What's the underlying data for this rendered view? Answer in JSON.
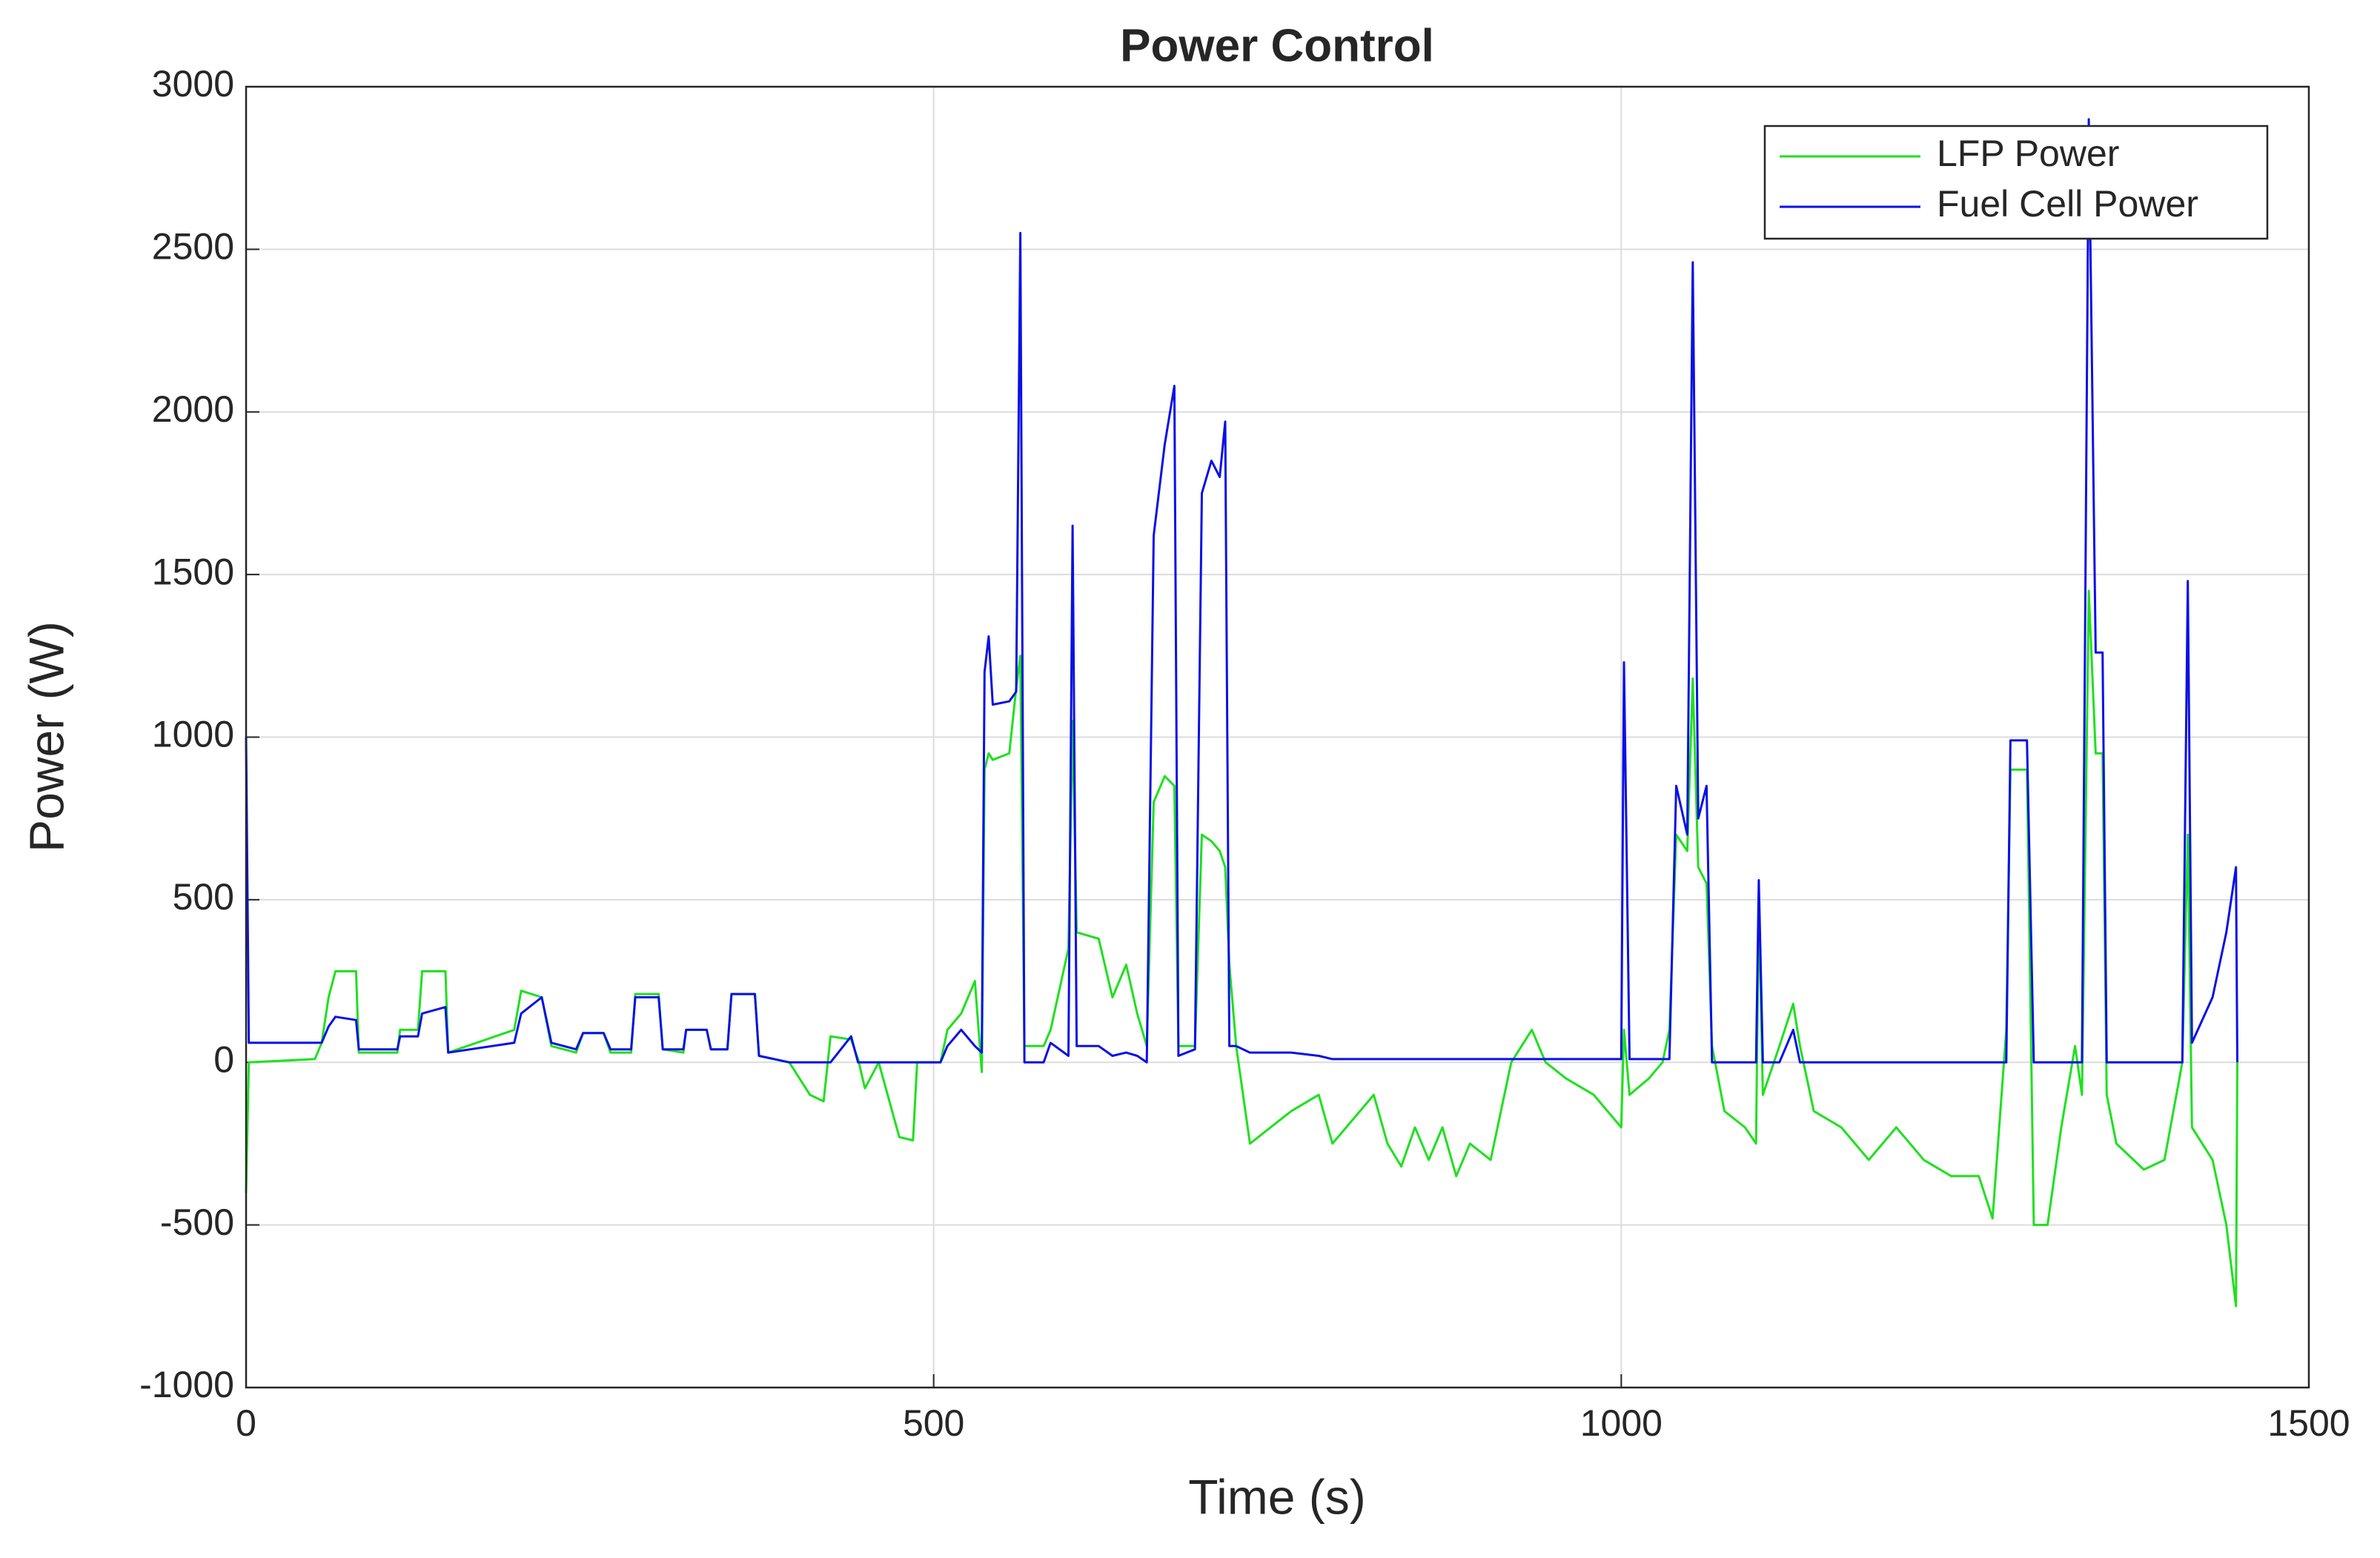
{
  "chart_data": {
    "type": "line",
    "title": "Power Control",
    "x_label": "Time (s)",
    "y_label": "Power (W)",
    "x": [
      0,
      2,
      50,
      55,
      60,
      65,
      80,
      82,
      110,
      112,
      125,
      128,
      145,
      147,
      195,
      200,
      215,
      222,
      240,
      245,
      260,
      265,
      280,
      283,
      300,
      303,
      318,
      320,
      335,
      338,
      350,
      353,
      370,
      373,
      395,
      410,
      420,
      425,
      440,
      445,
      450,
      460,
      475,
      485,
      488,
      505,
      510,
      520,
      530,
      535,
      537,
      540,
      543,
      555,
      560,
      563,
      566,
      580,
      585,
      598,
      601,
      604,
      620,
      630,
      640,
      648,
      655,
      660,
      668,
      675,
      678,
      690,
      695,
      702,
      708,
      712,
      715,
      720,
      730,
      760,
      780,
      790,
      810,
      820,
      830,
      840,
      850,
      860,
      870,
      880,
      890,
      905,
      920,
      935,
      945,
      960,
      980,
      1000,
      1002,
      1006,
      1020,
      1030,
      1035,
      1040,
      1048,
      1052,
      1056,
      1062,
      1066,
      1075,
      1090,
      1098,
      1100,
      1103,
      1115,
      1125,
      1130,
      1140,
      1160,
      1180,
      1200,
      1220,
      1240,
      1260,
      1270,
      1280,
      1283,
      1295,
      1300,
      1310,
      1320,
      1330,
      1335,
      1340,
      1345,
      1350,
      1353,
      1360,
      1380,
      1395,
      1408,
      1412,
      1415,
      1430,
      1440,
      1447,
      1448
    ],
    "series": [
      {
        "name": "LFP Power",
        "color": "#1fe01f",
        "values": [
          -400,
          0,
          10,
          60,
          200,
          280,
          280,
          30,
          30,
          100,
          100,
          280,
          280,
          30,
          100,
          220,
          200,
          50,
          30,
          90,
          90,
          30,
          30,
          210,
          210,
          40,
          30,
          100,
          100,
          40,
          40,
          210,
          210,
          20,
          0,
          -100,
          -120,
          80,
          70,
          10,
          -80,
          0,
          -230,
          -240,
          0,
          0,
          100,
          150,
          250,
          -30,
          900,
          950,
          930,
          950,
          1150,
          1250,
          50,
          50,
          100,
          350,
          1050,
          400,
          380,
          200,
          300,
          150,
          50,
          800,
          880,
          850,
          50,
          50,
          700,
          680,
          650,
          600,
          300,
          50,
          -250,
          -150,
          -100,
          -250,
          -150,
          -100,
          -250,
          -320,
          -200,
          -300,
          -200,
          -350,
          -250,
          -300,
          0,
          100,
          0,
          -50,
          -100,
          -200,
          100,
          -100,
          -50,
          0,
          100,
          700,
          650,
          1180,
          600,
          550,
          50,
          -150,
          -200,
          -250,
          500,
          -100,
          50,
          180,
          50,
          -150,
          -200,
          -300,
          -200,
          -300,
          -350,
          -350,
          -480,
          100,
          900,
          900,
          -500,
          -500,
          -200,
          50,
          -100,
          1450,
          950,
          950,
          -100,
          -250,
          -330,
          -300,
          0,
          700,
          -200,
          -300,
          -500,
          -750,
          0
        ]
      },
      {
        "name": "Fuel Cell Power",
        "color": "#0a10e6",
        "values": [
          1000,
          60,
          60,
          60,
          110,
          140,
          130,
          40,
          40,
          80,
          80,
          150,
          170,
          30,
          60,
          150,
          200,
          60,
          40,
          90,
          90,
          40,
          40,
          200,
          200,
          40,
          40,
          100,
          100,
          40,
          40,
          210,
          210,
          20,
          0,
          0,
          0,
          0,
          80,
          0,
          0,
          0,
          0,
          0,
          0,
          0,
          50,
          100,
          50,
          30,
          1200,
          1310,
          1100,
          1110,
          1140,
          2550,
          0,
          0,
          60,
          20,
          1650,
          50,
          50,
          20,
          30,
          20,
          0,
          1620,
          1900,
          2080,
          20,
          40,
          1750,
          1850,
          1800,
          1970,
          50,
          50,
          30,
          30,
          20,
          10,
          10,
          10,
          10,
          10,
          10,
          10,
          10,
          10,
          10,
          10,
          10,
          10,
          10,
          10,
          10,
          10,
          1230,
          10,
          10,
          10,
          10,
          850,
          700,
          2460,
          750,
          850,
          0,
          0,
          0,
          0,
          560,
          0,
          0,
          100,
          0,
          0,
          0,
          0,
          0,
          0,
          0,
          0,
          0,
          0,
          990,
          990,
          0,
          0,
          0,
          0,
          0,
          2900,
          1260,
          1260,
          0,
          0,
          0,
          0,
          0,
          1480,
          60,
          200,
          400,
          600,
          0
        ]
      }
    ],
    "xlim": [
      0,
      1500
    ],
    "xticks": [
      0,
      500,
      1000,
      1500
    ],
    "ylim": [
      -1000,
      3000
    ],
    "yticks": [
      -1000,
      -500,
      0,
      500,
      1000,
      1500,
      2000,
      2500,
      3000
    ],
    "grid": true,
    "legend": "upper right"
  }
}
